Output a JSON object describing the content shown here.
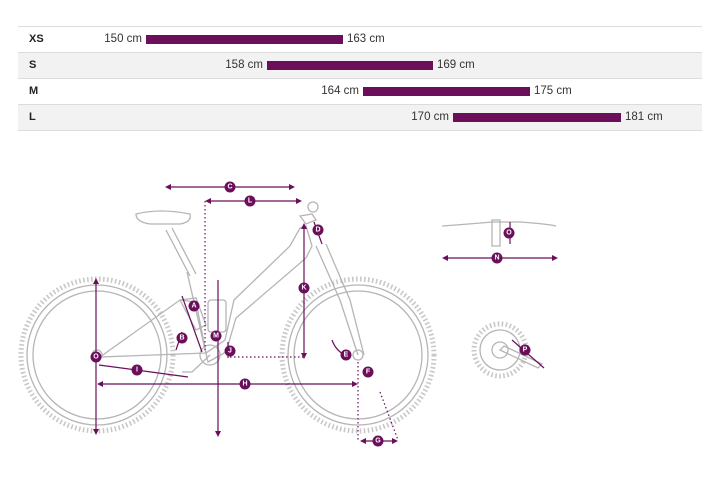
{
  "size_chart": {
    "rows": [
      {
        "size": "XS",
        "min": "150 cm",
        "max": "163 cm",
        "from": 150,
        "to": 163
      },
      {
        "size": "S",
        "min": "158 cm",
        "max": "169 cm",
        "from": 158,
        "to": 169
      },
      {
        "size": "M",
        "min": "164 cm",
        "max": "175 cm",
        "from": 164,
        "to": 175
      },
      {
        "size": "L",
        "min": "170 cm",
        "max": "181 cm",
        "from": 170,
        "to": 181
      }
    ]
  },
  "geometry_labels": [
    "A",
    "B",
    "C",
    "D",
    "E",
    "F",
    "G",
    "H",
    "I",
    "J",
    "K",
    "L",
    "M",
    "N",
    "O",
    "O",
    "P"
  ],
  "colors": {
    "accent": "#6b0f5b",
    "frame": "#b5b5b5"
  }
}
